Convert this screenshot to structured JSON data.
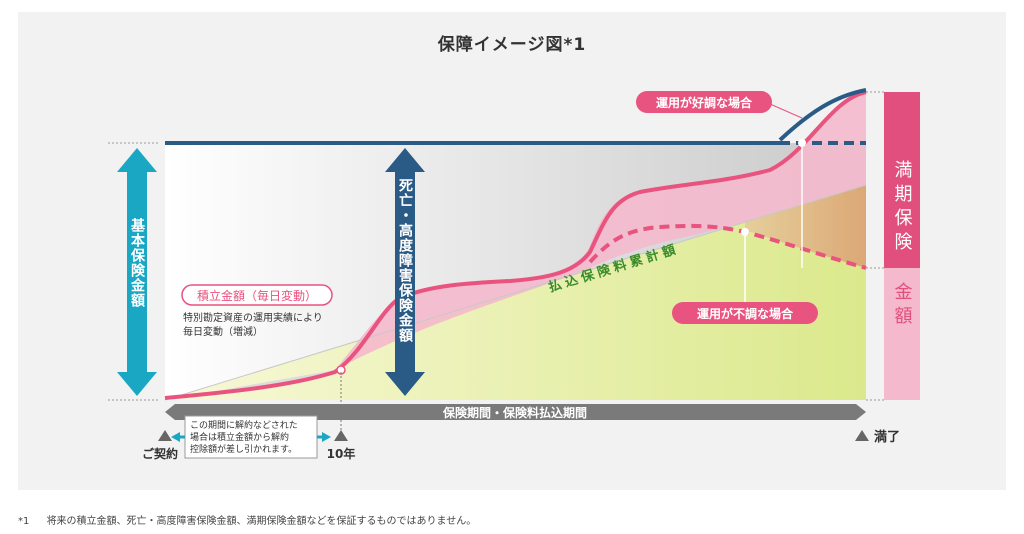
{
  "title": "保障イメージ図*1",
  "labels": {
    "basic_amount": "基本保険金額",
    "death_amount": "死亡・高度障害保険金額",
    "maturity_top": "満期保険",
    "maturity_bottom": "金額",
    "good_case": "運用が好調な場合",
    "bad_case": "運用が不調な場合",
    "premium_total": "払込保険料累計額",
    "savings_title": "積立金額（毎日変動）",
    "savings_desc_1": "特別勘定資産の運用実績により",
    "savings_desc_2": "毎日変動（増減）",
    "period": "保険期間・保険料払込期間",
    "cancel_note_1": "この期間に解約などされた",
    "cancel_note_2": "場合は積立金額から解約",
    "cancel_note_3": "控除額が差し引かれます。",
    "contract": "ご契約",
    "ten_years": "10年",
    "maturity_end": "満了"
  },
  "footnote": {
    "mark": "*1",
    "text": "将来の積立金額、死亡・高度障害保険金額、満期保険金額などを保証するものではありません。"
  },
  "colors": {
    "pink": "#e8537f",
    "navy": "#2a5a86",
    "teal": "#1aa7c4",
    "green": "#3a8b2c",
    "gray_bar": "#7a7a7a",
    "maturity_pink": "#e04f7e"
  }
}
